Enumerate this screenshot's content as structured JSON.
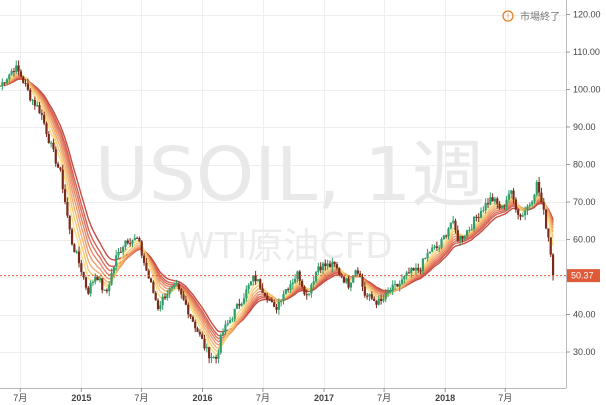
{
  "status": {
    "label": "市場終了",
    "icon": "alert-circle-icon"
  },
  "watermark": {
    "symbol": "USOIL, 1週",
    "description": "WTI原油CFD"
  },
  "price_tag": {
    "value": "50.37",
    "color": "#e05a3a"
  },
  "colors": {
    "up_candle": "#2e9e6a",
    "down_candle": "#7a2a1a",
    "ribbon_fast": "#f7dc6f",
    "ribbon_slow": "#c0392b",
    "current_price_line": "#e05a3a"
  },
  "chart_data": {
    "type": "candlestick",
    "symbol": "USOIL",
    "interval": "1週",
    "y_axis": {
      "position": "right",
      "ylim": [
        22,
        123
      ],
      "ticks": [
        30,
        40,
        50,
        60,
        70,
        80,
        90,
        100,
        110,
        120
      ],
      "tick_labels": [
        "30.00",
        "40.00",
        "50.00",
        "60.00",
        "70.00",
        "80.00",
        "90.00",
        "100.00",
        "110.00",
        "120.00"
      ]
    },
    "x_axis": {
      "range": [
        "2014-05-01",
        "2018-12-31"
      ],
      "ticks": [
        {
          "date": "2014-07-01",
          "label": "7月",
          "bold": false
        },
        {
          "date": "2015-01-01",
          "label": "2015",
          "bold": true
        },
        {
          "date": "2015-07-01",
          "label": "7月",
          "bold": false
        },
        {
          "date": "2016-01-01",
          "label": "2016",
          "bold": true
        },
        {
          "date": "2016-07-01",
          "label": "7月",
          "bold": false
        },
        {
          "date": "2017-01-01",
          "label": "2017",
          "bold": true
        },
        {
          "date": "2017-07-01",
          "label": "7月",
          "bold": false
        },
        {
          "date": "2018-01-01",
          "label": "2018",
          "bold": true
        },
        {
          "date": "2018-07-01",
          "label": "7月",
          "bold": false
        }
      ]
    },
    "grid": true,
    "last_price": 50.37,
    "price_path": [
      [
        "2014-05-01",
        101
      ],
      [
        "2014-06-15",
        106
      ],
      [
        "2014-07-01",
        104
      ],
      [
        "2014-08-01",
        98
      ],
      [
        "2014-09-01",
        94
      ],
      [
        "2014-10-01",
        85
      ],
      [
        "2014-11-01",
        77
      ],
      [
        "2014-12-01",
        60
      ],
      [
        "2015-01-01",
        52
      ],
      [
        "2015-01-20",
        46
      ],
      [
        "2015-02-15",
        51
      ],
      [
        "2015-03-15",
        45
      ],
      [
        "2015-04-15",
        55
      ],
      [
        "2015-05-15",
        60
      ],
      [
        "2015-06-20",
        60
      ],
      [
        "2015-07-15",
        52
      ],
      [
        "2015-08-20",
        42
      ],
      [
        "2015-09-15",
        46
      ],
      [
        "2015-10-15",
        47
      ],
      [
        "2015-11-15",
        42
      ],
      [
        "2015-12-15",
        36
      ],
      [
        "2016-01-15",
        30
      ],
      [
        "2016-02-10",
        28
      ],
      [
        "2016-03-01",
        35
      ],
      [
        "2016-04-15",
        42
      ],
      [
        "2016-06-05",
        50
      ],
      [
        "2016-07-15",
        45
      ],
      [
        "2016-08-05",
        41
      ],
      [
        "2016-09-01",
        46
      ],
      [
        "2016-10-15",
        51
      ],
      [
        "2016-11-10",
        45
      ],
      [
        "2016-12-15",
        53
      ],
      [
        "2017-02-01",
        53
      ],
      [
        "2017-03-15",
        48
      ],
      [
        "2017-04-10",
        53
      ],
      [
        "2017-05-05",
        45
      ],
      [
        "2017-06-20",
        43
      ],
      [
        "2017-07-15",
        46
      ],
      [
        "2017-08-15",
        48
      ],
      [
        "2017-09-15",
        51
      ],
      [
        "2017-10-15",
        52
      ],
      [
        "2017-11-15",
        57
      ],
      [
        "2017-12-15",
        58
      ],
      [
        "2018-01-20",
        65
      ],
      [
        "2018-02-10",
        60
      ],
      [
        "2018-03-15",
        63
      ],
      [
        "2018-04-20",
        68
      ],
      [
        "2018-05-20",
        71
      ],
      [
        "2018-06-20",
        68
      ],
      [
        "2018-07-15",
        73
      ],
      [
        "2018-08-15",
        66
      ],
      [
        "2018-09-15",
        70
      ],
      [
        "2018-10-05",
        75
      ],
      [
        "2018-10-25",
        67
      ],
      [
        "2018-11-12",
        59
      ],
      [
        "2018-11-23",
        50.4
      ]
    ],
    "ribbon": {
      "count": 8,
      "note_colors": [
        "#f7dc6f",
        "#f5c26b",
        "#f0a868",
        "#eb9062",
        "#e47a5a",
        "#da6450",
        "#cd5044",
        "#c0392b"
      ],
      "periods": [
        5,
        7,
        9,
        11,
        13,
        15,
        17,
        20
      ]
    }
  }
}
